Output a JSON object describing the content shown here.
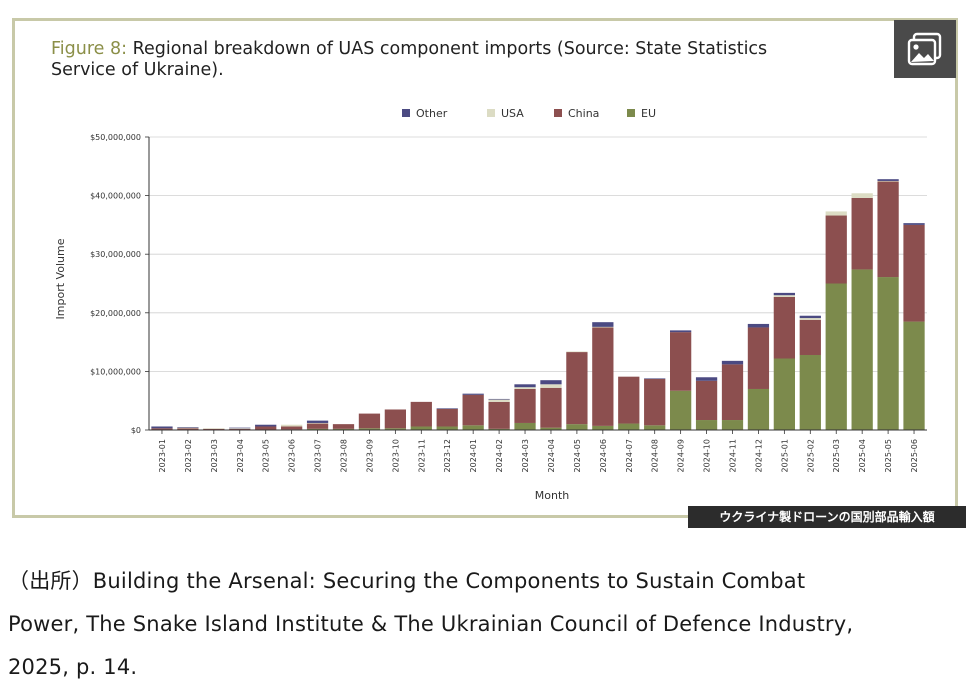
{
  "figure": {
    "label": "Figure 8:",
    "title_line1": "Regional breakdown of UAS component imports (Source: State Statistics",
    "title_line2": "Service of Ukraine).",
    "badge": "ウクライナ製ドローンの国別部品輸入額",
    "icon": "image-gallery-icon"
  },
  "source": {
    "line1": "（出所）Building the Arsenal: Securing the Components to Sustain Combat",
    "line2": "Power, The Snake Island Institute & The Ukrainian Council of Defence Industry,",
    "line3": "2025, p. 14."
  },
  "colors": {
    "Other": "#4b4a82",
    "USA": "#dcdcc4",
    "China": "#8c4f4f",
    "EU": "#7c8a4c",
    "axis": "#333333",
    "grid": "#d0d0d0",
    "frame": "#c8c9a8"
  },
  "chart_data": {
    "type": "bar",
    "stacked": true,
    "title": "Regional breakdown of UAS component imports (Source: State Statistics Service of Ukraine).",
    "xlabel": "Month",
    "ylabel": "Import Volume",
    "ylim": [
      0,
      50000000
    ],
    "y_ticks": [
      0,
      10000000,
      20000000,
      30000000,
      40000000,
      50000000
    ],
    "y_tick_labels": [
      "$0",
      "$10,000,000",
      "$20,000,000",
      "$30,000,000",
      "$40,000,000",
      "$50,000,000"
    ],
    "grid": true,
    "legend_position": "top-center",
    "legend_order": [
      "Other",
      "USA",
      "China",
      "EU"
    ],
    "categories": [
      "2023-01",
      "2023-02",
      "2023-03",
      "2023-04",
      "2023-05",
      "2023-06",
      "2023-07",
      "2023-08",
      "2023-09",
      "2023-10",
      "2023-11",
      "2023-12",
      "2024-01",
      "2024-02",
      "2024-03",
      "2024-04",
      "2024-05",
      "2024-06",
      "2024-07",
      "2024-08",
      "2024-09",
      "2024-10",
      "2024-11",
      "2024-12",
      "2025-01",
      "2025-02",
      "2025-03",
      "2025-04",
      "2025-05",
      "2025-06"
    ],
    "series": [
      {
        "name": "EU",
        "values": [
          0,
          0,
          0,
          0,
          0,
          100000,
          200000,
          200000,
          300000,
          300000,
          600000,
          600000,
          800000,
          200000,
          1200000,
          400000,
          1000000,
          700000,
          1100000,
          800000,
          6700000,
          1700000,
          1700000,
          7000000,
          12200000,
          12800000,
          25000000,
          27400000,
          26100000,
          18500000
        ]
      },
      {
        "name": "China",
        "values": [
          300000,
          300000,
          200000,
          200000,
          600000,
          500000,
          900000,
          800000,
          2500000,
          3200000,
          4200000,
          3000000,
          5200000,
          4600000,
          5800000,
          6800000,
          12300000,
          16800000,
          8000000,
          7900000,
          10000000,
          6700000,
          9500000,
          10500000,
          10500000,
          6000000,
          11600000,
          12200000,
          16300000,
          16500000
        ]
      },
      {
        "name": "USA",
        "values": [
          0,
          100000,
          100000,
          100000,
          0,
          300000,
          100000,
          0,
          0,
          0,
          0,
          0,
          0,
          400000,
          300000,
          600000,
          100000,
          100000,
          0,
          0,
          0,
          0,
          0,
          0,
          300000,
          300000,
          700000,
          800000,
          100000,
          0
        ]
      },
      {
        "name": "Other",
        "values": [
          300000,
          100000,
          0,
          100000,
          300000,
          0,
          400000,
          0,
          0,
          0,
          0,
          100000,
          200000,
          100000,
          500000,
          700000,
          0,
          800000,
          0,
          100000,
          300000,
          600000,
          600000,
          600000,
          400000,
          400000,
          0,
          0,
          300000,
          300000
        ]
      }
    ]
  }
}
